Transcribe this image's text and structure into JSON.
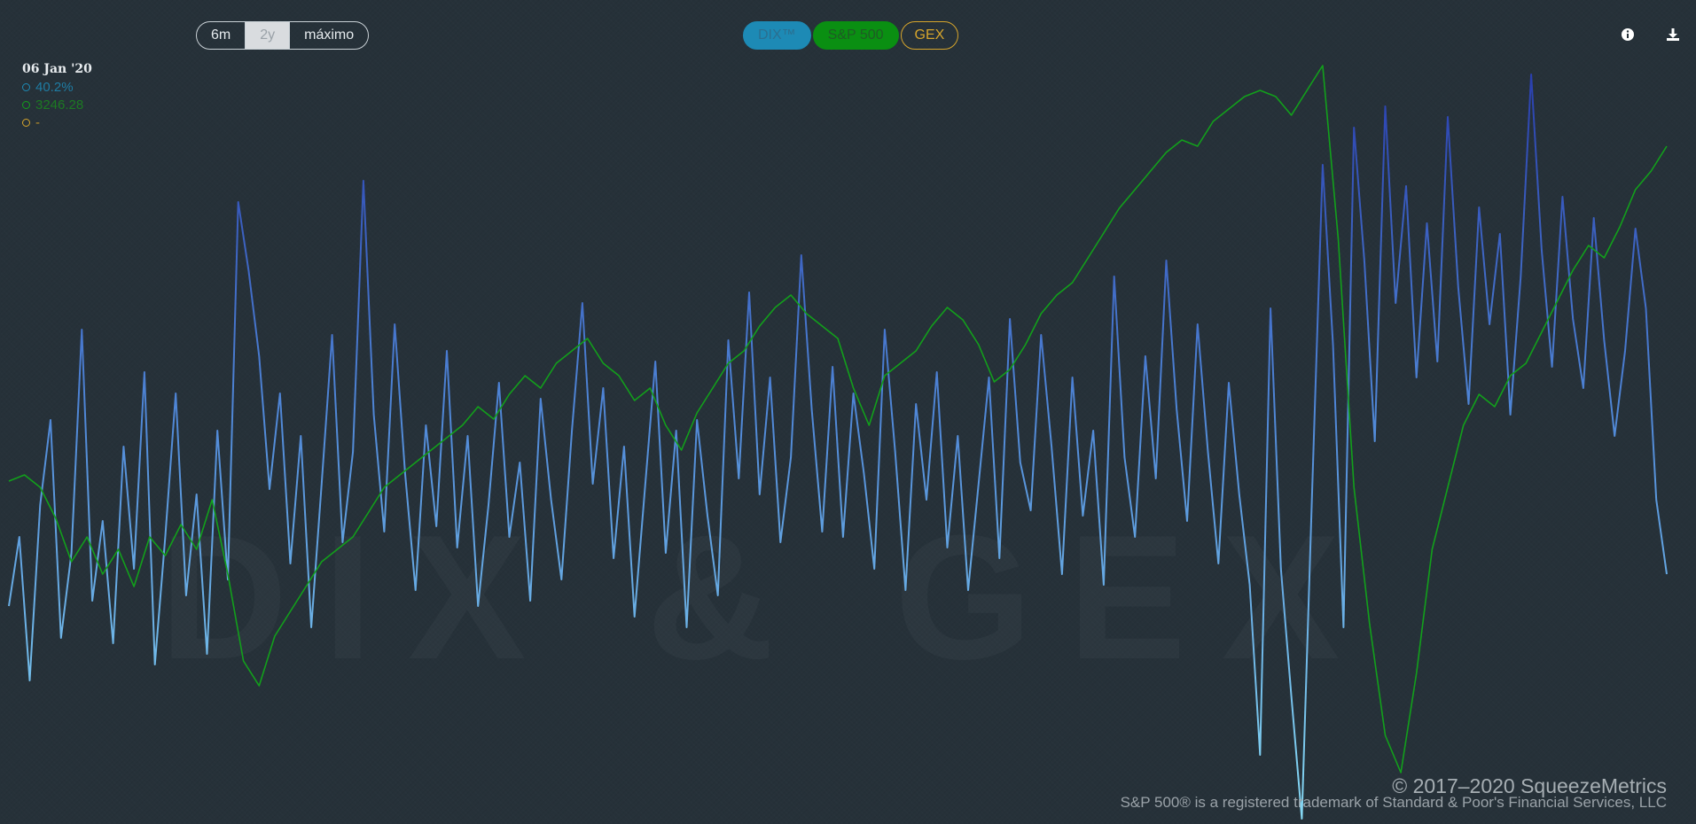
{
  "range_buttons": [
    {
      "label": "6m",
      "active": false
    },
    {
      "label": "2y",
      "active": true
    },
    {
      "label": "máximo",
      "active": false
    }
  ],
  "series_toggles": {
    "dix": "DIX™",
    "spx": "S&P 500",
    "gex": "GEX"
  },
  "tooltip": {
    "date": "06 Jan '20",
    "dix_value": "40.2%",
    "spx_value": "3246.28",
    "gex_value": "-"
  },
  "colors": {
    "dix_line_top": "#3147b0",
    "dix_line_bottom": "#7fd4f0",
    "spx_line": "#12a01b",
    "gex": "#d6a52c"
  },
  "icons": {
    "info": "info-icon",
    "download": "download-icon"
  },
  "watermark": "DIX & GEX",
  "footer": {
    "copyright": "© 2017–2020 SqueezeMetrics",
    "trademark": "S&P 500® is a registered trademark of Standard & Poor's Financial Services, LLC"
  },
  "chart_data": {
    "type": "line",
    "x_axis": "dates",
    "x_range": [
      "2018-05",
      "2020-05"
    ],
    "series": [
      {
        "name": "DIX™",
        "y_range_percent": [
          36,
          50
        ],
        "values": [
          39.6,
          40.9,
          38.2,
          41.5,
          43.1,
          39.0,
          40.6,
          44.8,
          39.7,
          41.2,
          38.9,
          42.6,
          40.3,
          44.0,
          38.5,
          40.9,
          43.6,
          39.8,
          41.7,
          38.7,
          42.9,
          40.1,
          47.2,
          45.9,
          44.3,
          41.8,
          43.6,
          40.4,
          42.8,
          39.2,
          41.9,
          44.7,
          40.8,
          42.5,
          47.6,
          43.2,
          41.0,
          44.9,
          42.1,
          39.9,
          43.0,
          41.1,
          44.4,
          40.7,
          42.8,
          39.6,
          41.5,
          43.8,
          40.9,
          42.3,
          39.7,
          43.5,
          41.6,
          40.1,
          42.9,
          45.3,
          41.9,
          43.7,
          40.5,
          42.6,
          39.4,
          41.8,
          44.2,
          40.6,
          42.9,
          39.2,
          43.1,
          41.3,
          39.8,
          44.6,
          42.0,
          45.5,
          41.7,
          43.9,
          40.8,
          42.4,
          46.2,
          43.3,
          41.0,
          44.1,
          40.9,
          43.6,
          42.1,
          40.3,
          44.8,
          42.5,
          39.9,
          43.4,
          41.6,
          44.0,
          40.7,
          42.8,
          39.9,
          41.9,
          43.9,
          40.5,
          45.0,
          42.3,
          41.4,
          44.7,
          42.6,
          40.2,
          43.9,
          41.3,
          42.9,
          40.0,
          45.8,
          42.4,
          40.9,
          44.3,
          42.0,
          46.1,
          43.3,
          41.2,
          44.9,
          42.5,
          40.4,
          43.8,
          41.7,
          40.0,
          36.8,
          45.2,
          40.3,
          37.9,
          35.6,
          41.8,
          47.9,
          44.5,
          39.2,
          48.6,
          46.1,
          42.7,
          49.0,
          45.3,
          47.5,
          43.9,
          46.8,
          44.2,
          48.8,
          45.6,
          43.4,
          47.1,
          44.9,
          46.6,
          43.2,
          45.8,
          49.6,
          46.3,
          44.1,
          47.3,
          45.0,
          43.7,
          46.9,
          44.6,
          42.8,
          44.4,
          46.7,
          45.2,
          41.6,
          40.2
        ]
      },
      {
        "name": "S&P 500",
        "y_range": [
          2200,
          3400
        ],
        "values": [
          2710,
          2720,
          2700,
          2650,
          2580,
          2620,
          2560,
          2600,
          2540,
          2620,
          2590,
          2640,
          2600,
          2680,
          2560,
          2420,
          2380,
          2460,
          2500,
          2540,
          2580,
          2600,
          2620,
          2660,
          2700,
          2720,
          2740,
          2760,
          2780,
          2800,
          2830,
          2810,
          2850,
          2880,
          2860,
          2900,
          2920,
          2940,
          2900,
          2880,
          2840,
          2860,
          2800,
          2760,
          2820,
          2860,
          2900,
          2920,
          2960,
          2990,
          3010,
          2980,
          2960,
          2940,
          2860,
          2800,
          2880,
          2900,
          2920,
          2960,
          2990,
          2970,
          2930,
          2870,
          2890,
          2930,
          2980,
          3010,
          3030,
          3070,
          3110,
          3150,
          3180,
          3210,
          3240,
          3260,
          3250,
          3290,
          3310,
          3330,
          3340,
          3330,
          3300,
          3340,
          3380,
          3100,
          2700,
          2480,
          2300,
          2240,
          2400,
          2600,
          2700,
          2800,
          2850,
          2830,
          2880,
          2900,
          2950,
          3000,
          3050,
          3090,
          3070,
          3120,
          3180,
          3210,
          3250
        ]
      }
    ],
    "legend": [
      "DIX™",
      "S&P 500",
      "GEX"
    ],
    "grid": false
  }
}
